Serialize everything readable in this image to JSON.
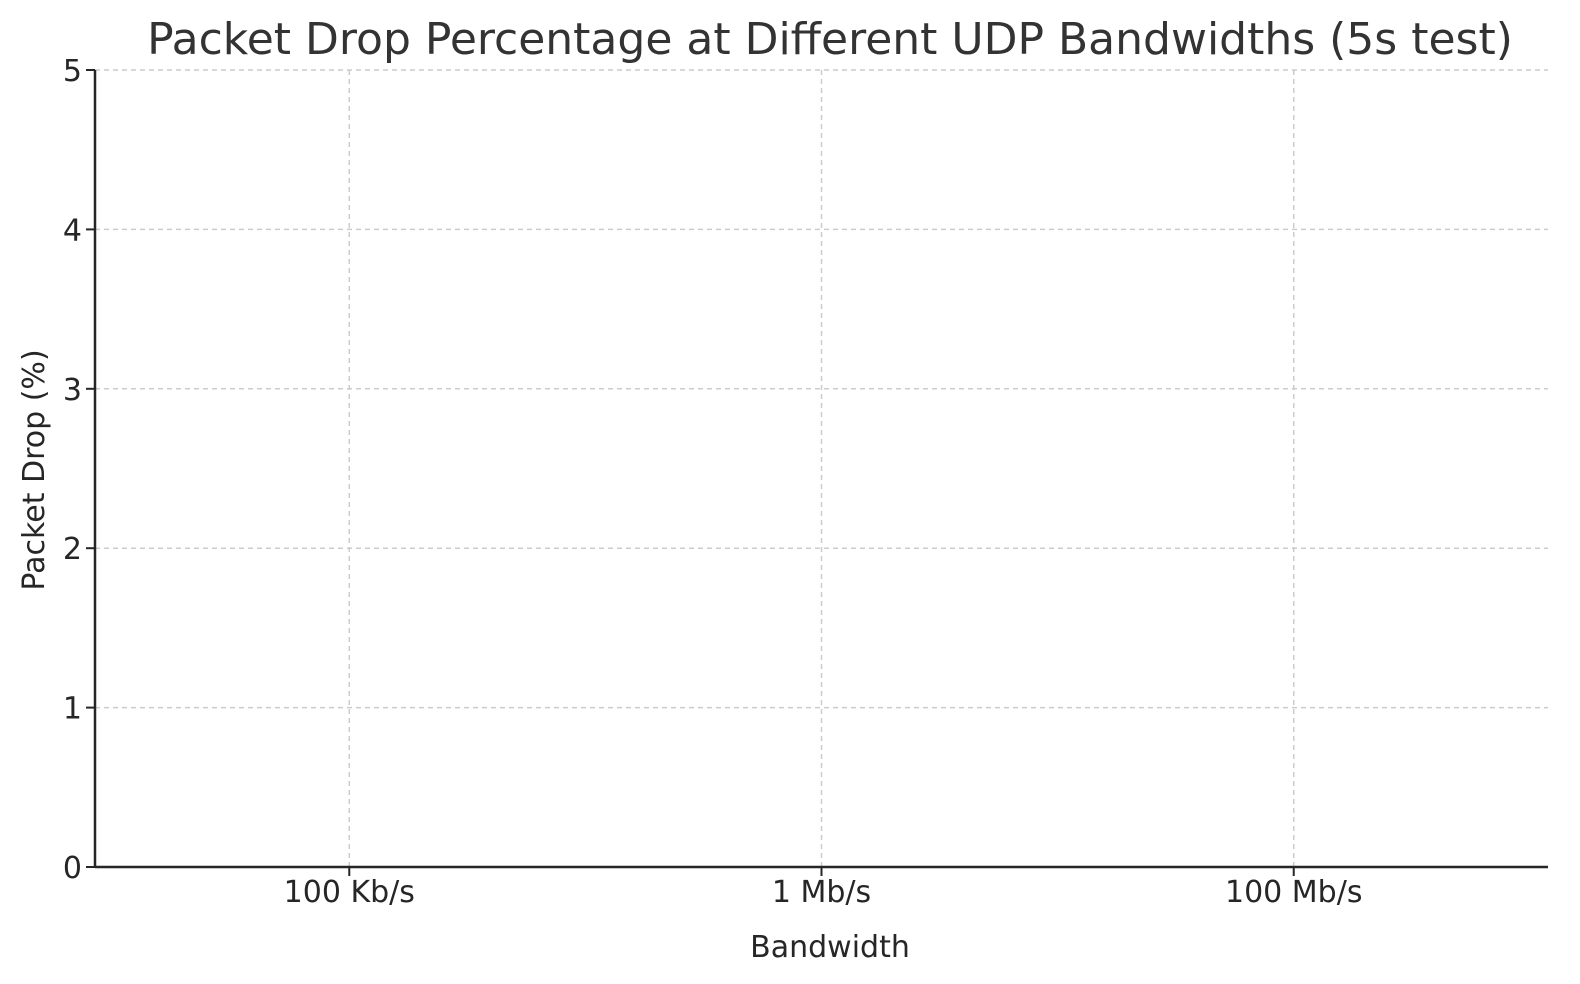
{
  "chart_data": {
    "type": "bar",
    "title": "Packet Drop Percentage at Different UDP Bandwidths (5s test)",
    "xlabel": "Bandwidth",
    "ylabel": "Packet Drop (%)",
    "categories": [
      "100 Kb/s",
      "1 Mb/s",
      "100 Mb/s"
    ],
    "values": [
      0,
      0,
      0
    ],
    "ylim": [
      0,
      5
    ],
    "yticks": [
      0,
      1,
      2,
      3,
      4,
      5
    ],
    "grid": true,
    "bar_color": "#4c72b0",
    "axis_color": "#262626",
    "grid_color": "#cccccc"
  }
}
